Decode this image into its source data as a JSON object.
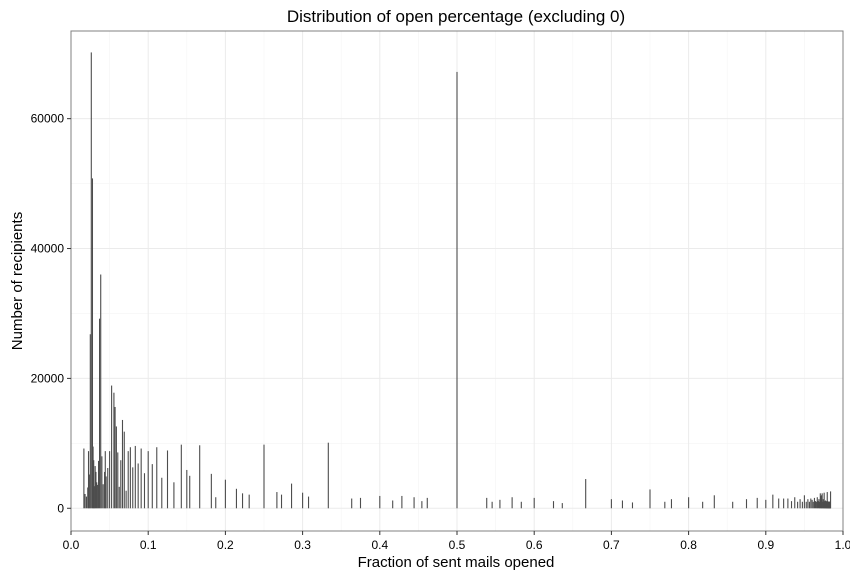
{
  "chart_data": {
    "type": "bar",
    "title": "Distribution of open percentage (excluding 0)",
    "xlabel": "Fraction of sent mails opened",
    "ylabel": "Number of recipients",
    "xlim": [
      0.0,
      1.0
    ],
    "ylim": [
      -3500,
      73500
    ],
    "xticks": [
      0.0,
      0.1,
      0.2,
      0.3,
      0.4,
      0.5,
      0.6,
      0.7,
      0.8,
      0.9,
      1.0
    ],
    "xtick_labels": [
      "0.0",
      "0.1",
      "0.2",
      "0.3",
      "0.4",
      "0.5",
      "0.6",
      "0.7",
      "0.8",
      "0.9",
      "1.0"
    ],
    "yticks": [
      0,
      20000,
      40000,
      60000
    ],
    "ytick_labels": [
      "0",
      "20000",
      "40000",
      "60000"
    ],
    "grid": true,
    "bar_color": "#4d4d4d",
    "series": [
      {
        "x": [
          0.0167,
          0.0182,
          0.02,
          0.0217,
          0.0227,
          0.0238,
          0.025,
          0.0263,
          0.0278,
          0.0286,
          0.0294,
          0.0303,
          0.0313,
          0.0323,
          0.0333,
          0.0345,
          0.0357,
          0.037,
          0.0385,
          0.04,
          0.0417,
          0.0435,
          0.0444,
          0.0455,
          0.0476,
          0.05,
          0.0526,
          0.0556,
          0.0571,
          0.0588,
          0.0606,
          0.0625,
          0.0645,
          0.0667,
          0.069,
          0.0714,
          0.0741,
          0.0769,
          0.08,
          0.0833,
          0.087,
          0.0909,
          0.0952,
          0.1,
          0.1053,
          0.1111,
          0.1176,
          0.125,
          0.1333,
          0.1429,
          0.15,
          0.1538,
          0.1667,
          0.1818,
          0.1875,
          0.2,
          0.2143,
          0.2222,
          0.2308,
          0.25,
          0.2667,
          0.2727,
          0.2857,
          0.3,
          0.3077,
          0.3333,
          0.3636,
          0.375,
          0.4,
          0.4167,
          0.4286,
          0.4444,
          0.4545,
          0.4615,
          0.5,
          0.5385,
          0.5455,
          0.5556,
          0.5714,
          0.5833,
          0.6,
          0.625,
          0.6364,
          0.6667,
          0.7,
          0.7143,
          0.7273,
          0.75,
          0.7692,
          0.7778,
          0.8,
          0.8182,
          0.8333,
          0.8571,
          0.875,
          0.8889,
          0.9,
          0.9091,
          0.9167,
          0.9231,
          0.9286,
          0.9333,
          0.9375,
          0.9412,
          0.9444,
          0.9474,
          0.95,
          0.9524,
          0.9545,
          0.9565,
          0.9583,
          0.96,
          0.9615,
          0.963,
          0.9643,
          0.9655,
          0.9667,
          0.9677,
          0.9688,
          0.9697,
          0.9706,
          0.9714,
          0.9722,
          0.973,
          0.9737,
          0.9744,
          0.975,
          0.9756,
          0.9762,
          0.9767,
          0.9773,
          0.9778,
          0.9783,
          0.9787,
          0.9792,
          0.9796,
          0.98,
          0.9804,
          0.9808,
          0.9811,
          0.9815,
          0.9818,
          0.9821,
          0.9825,
          0.9828,
          0.9831,
          0.9833,
          0.9836,
          0.9839
        ],
        "y": [
          9200,
          2200,
          1800,
          3200,
          8800,
          5200,
          26800,
          70200,
          50800,
          9500,
          7400,
          3400,
          6500,
          5600,
          4000,
          3600,
          7300,
          29200,
          36000,
          8000,
          3700,
          5600,
          8800,
          4900,
          6200,
          8800,
          18900,
          17800,
          15600,
          12600,
          8600,
          3300,
          7400,
          13600,
          11800,
          2700,
          8800,
          9400,
          6300,
          9600,
          6900,
          9200,
          5400,
          8800,
          6800,
          9400,
          4700,
          8900,
          4000,
          9800,
          5900,
          5000,
          9700,
          5300,
          1700,
          4400,
          3000,
          2300,
          2100,
          9800,
          2500,
          2100,
          3800,
          2400,
          1800,
          10100,
          1500,
          1600,
          1900,
          1200,
          1900,
          1700,
          1100,
          1600,
          67200,
          1600,
          1000,
          1300,
          1700,
          1000,
          1600,
          1100,
          800,
          4500,
          1400,
          1200,
          900,
          2900,
          1000,
          1400,
          1700,
          1000,
          2000,
          1000,
          1400,
          1600,
          1300,
          2100,
          1500,
          1500,
          1500,
          1100,
          1700,
          1000,
          1400,
          1000,
          2000,
          1000,
          1400,
          1000,
          1500,
          1300,
          1000,
          1600,
          1100,
          1000,
          1700,
          1100,
          1400,
          1000,
          2300,
          1900,
          2000,
          2300,
          1000,
          1400,
          1000,
          2400,
          1100,
          1000,
          1200,
          1000,
          1100,
          1000,
          1000,
          2500,
          1100,
          1000,
          1000,
          1000,
          1000,
          1000,
          1000,
          1000,
          1000,
          1000,
          1000,
          1000,
          2600
        ]
      }
    ]
  }
}
